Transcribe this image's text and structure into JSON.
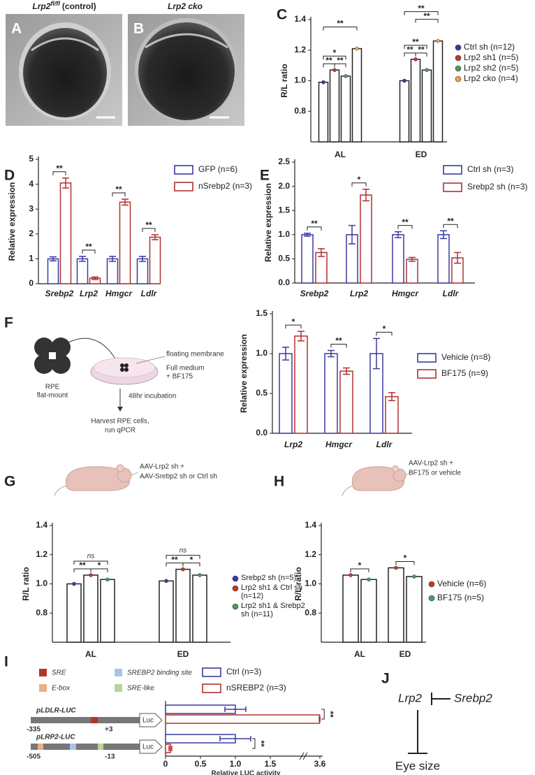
{
  "panel_letters": [
    "A",
    "B",
    "C",
    "D",
    "E",
    "F",
    "G",
    "H",
    "I",
    "J"
  ],
  "photos": {
    "A_title": [
      "Lrp2",
      "fl/fl",
      "(control)"
    ],
    "B_title": "Lrp2 cko"
  },
  "schematic_F": {
    "tissue": [
      "RPE",
      "flat-mount"
    ],
    "membrane": "floating membrane",
    "medium": [
      "Full medium",
      "+ BF175"
    ],
    "incubation": "48hr incubation",
    "harvest": [
      "Harvest RPE cells,",
      "run qPCR"
    ]
  },
  "mouse_G": [
    "AAV-Lrp2 sh +",
    "AAV-Srebp2 sh or Ctrl sh"
  ],
  "mouse_H": [
    "AAV-Lrp2 sh +",
    "BF175 or vehicle"
  ],
  "constructs": {
    "key": [
      "SRE",
      "SREBP2 binding site",
      "E-box",
      "SRE-like"
    ],
    "items": [
      {
        "start": "-335",
        "end": "+3",
        "reporter": "Luc"
      },
      {
        "start": "-505",
        "end": "-13",
        "reporter": "Luc"
      }
    ]
  },
  "model": {
    "a": "Lrp2",
    "b": "Srebp2",
    "c": "Eye size"
  },
  "chart_data": [
    {
      "type": "bar",
      "ylabel": "R/L ratio",
      "categories": [
        "AL",
        "ED"
      ],
      "bar_edge": "#222",
      "ylim": [
        0.6,
        1.4
      ],
      "yticks": [
        0.8,
        {
          "value": 1,
          "label": "1.0"
        },
        1.2,
        1.4
      ],
      "series": [
        {
          "name": "Ctrl sh (n=12)",
          "color": "#3a3aa0",
          "values": [
            0.99,
            1.0
          ]
        },
        {
          "name": "Lrp2 sh1 (n=5)",
          "color": "#c0392b",
          "values": [
            1.07,
            1.14
          ]
        },
        {
          "name": "Lrp2 sh2 (n=5)",
          "color": "#4e9a5e",
          "values": [
            1.03,
            1.07
          ]
        },
        {
          "name": "Lrp2 cko (n=4)",
          "color": "#f0a040",
          "values": [
            1.21,
            1.26
          ]
        }
      ],
      "annotations": [
        "**",
        "**",
        "*",
        "**",
        "**",
        "**",
        "**",
        "**",
        "**"
      ]
    },
    {
      "type": "bar",
      "ylabel": "Relative expression",
      "categories": [
        "Srebp2",
        "Lrp2",
        "Hmgcr",
        "Ldlr"
      ],
      "bar_edge": "series",
      "ylim": [
        0,
        5
      ],
      "yticks": [
        0,
        1,
        2,
        3,
        4,
        5
      ],
      "series": [
        {
          "name": "GFP (n=6)",
          "color": "#3a3aa0",
          "values": [
            1,
            1,
            1,
            1
          ],
          "errors": [
            0.08,
            0.1,
            0.1,
            0.1
          ]
        },
        {
          "name": "nSrebp2 (n=3)",
          "color": "#b03030",
          "values": [
            4.05,
            0.22,
            3.28,
            1.87
          ],
          "errors": [
            0.2,
            0.05,
            0.12,
            0.1
          ]
        }
      ],
      "annotations": [
        "**",
        "**",
        "**",
        "**"
      ]
    },
    {
      "type": "bar",
      "ylabel": "Relative expression",
      "categories": [
        "Srebp2",
        "Lrp2",
        "Hmgcr",
        "Ldlr"
      ],
      "bar_edge": "series",
      "ylim": [
        0,
        2.5
      ],
      "yticks": [
        {
          "value": 0,
          "label": "0.0"
        },
        0.5,
        {
          "value": 1,
          "label": "1.0"
        },
        1.5,
        {
          "value": 2,
          "label": "2.0"
        },
        2.5
      ],
      "series": [
        {
          "name": "Ctrl sh (n=3)",
          "color": "#3a3aa0",
          "values": [
            1,
            1,
            1,
            1
          ],
          "errors": [
            0.03,
            0.19,
            0.06,
            0.08
          ]
        },
        {
          "name": "Srebp2 sh (n=3)",
          "color": "#b03030",
          "values": [
            0.63,
            1.82,
            0.49,
            0.52
          ],
          "errors": [
            0.08,
            0.12,
            0.04,
            0.11
          ]
        }
      ],
      "annotations": [
        "**",
        "*",
        "**",
        "**"
      ]
    },
    {
      "type": "bar",
      "ylabel": "Relative expression",
      "categories": [
        "Lrp2",
        "Hmgcr",
        "Ldlr"
      ],
      "bar_edge": "series",
      "ylim": [
        0,
        1.5
      ],
      "yticks": [
        {
          "value": 0,
          "label": "0.0"
        },
        0.5,
        {
          "value": 1,
          "label": "1.0"
        },
        1.5
      ],
      "series": [
        {
          "name": "Vehicle (n=8)",
          "color": "#3a3aa0",
          "values": [
            1,
            1,
            1
          ],
          "errors": [
            0.08,
            0.04,
            0.19
          ]
        },
        {
          "name": "BF175 (n=9)",
          "color": "#b03030",
          "values": [
            1.22,
            0.78,
            0.46
          ],
          "errors": [
            0.06,
            0.04,
            0.05
          ]
        }
      ],
      "annotations": [
        "*",
        "**",
        "*"
      ]
    },
    {
      "type": "bar",
      "ylabel": "R/L ratio",
      "categories": [
        "AL",
        "ED"
      ],
      "bar_edge": "#222",
      "ylim": [
        0.6,
        1.4
      ],
      "yticks": [
        0.8,
        {
          "value": 1,
          "label": "1.0"
        },
        1.2,
        1.4
      ],
      "series": [
        {
          "name": "Srebp2 sh (n=5)",
          "color": "#3a3aa0",
          "values": [
            1.0,
            1.02
          ]
        },
        {
          "name": "Lrp2 sh1 & Ctrl sh (n=12)",
          "color": "#c0392b",
          "values": [
            1.06,
            1.1
          ]
        },
        {
          "name": "Lrp2 sh1 & Srebp2 sh (n=11)",
          "color": "#4e9a5e",
          "values": [
            1.03,
            1.06
          ]
        }
      ],
      "annotations": [
        "**",
        "*",
        "ns",
        "**",
        "*",
        "ns"
      ]
    },
    {
      "type": "bar",
      "ylabel": "R/L ratio",
      "categories": [
        "AL",
        "ED"
      ],
      "bar_edge": "#222",
      "ylim": [
        0.6,
        1.4
      ],
      "yticks": [
        0.8,
        {
          "value": 1,
          "label": "1.0"
        },
        1.2,
        1.4
      ],
      "series": [
        {
          "name": "Vehicle (n=6)",
          "color": "#c0392b",
          "values": [
            1.06,
            1.11
          ]
        },
        {
          "name": "BF175 (n=5)",
          "color": "#4e9a5e",
          "values": [
            1.03,
            1.05
          ]
        }
      ],
      "annotations": [
        "*",
        "*"
      ]
    },
    {
      "type": "barh",
      "xlabel": "Relative LUC activity",
      "categories": [
        "pLDLR-LUC",
        "pLRP2-LUC"
      ],
      "bar_edge": "series",
      "xlim": [
        0,
        3.6
      ],
      "xticks": [
        0,
        0.5,
        {
          "value": 1,
          "label": "1.0"
        },
        1.5,
        3.6
      ],
      "series": [
        {
          "name": "Ctrl (n=3)",
          "color": "#3a3aa0",
          "values": [
            1.0,
            1.0
          ],
          "errors": [
            0.15,
            0.22
          ]
        },
        {
          "name": "nSREBP2 (n=3)",
          "color": "#b03030",
          "values": [
            3.58,
            0.07
          ],
          "errors": [
            0.03,
            0.02
          ]
        }
      ],
      "annotations": [
        "**",
        "**"
      ]
    }
  ]
}
